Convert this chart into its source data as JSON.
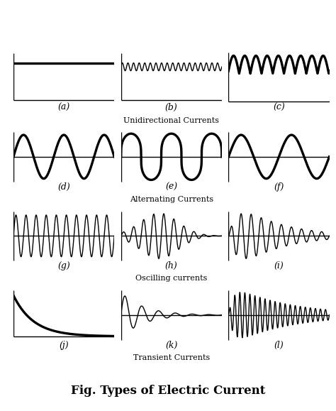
{
  "title": "Fig. Types of Electric Current",
  "title_fontsize": 12,
  "bg_color": "#ffffff",
  "text_color": "#000000",
  "lw_signal": 1.6,
  "lw_axis": 1.0,
  "lw_thick": 2.4,
  "panels": [
    {
      "label": "(a)",
      "type": "dc_flat"
    },
    {
      "label": "(b)",
      "type": "dc_ripple_small"
    },
    {
      "label": "(c)",
      "type": "dc_ripple_large"
    },
    {
      "label": "(d)",
      "type": "ac_sine"
    },
    {
      "label": "(e)",
      "type": "ac_peaky"
    },
    {
      "label": "(f)",
      "type": "ac_sine2"
    },
    {
      "label": "(g)",
      "type": "osc_uniform"
    },
    {
      "label": "(h)",
      "type": "osc_burst"
    },
    {
      "label": "(i)",
      "type": "osc_decay"
    },
    {
      "label": "(j)",
      "type": "trans_exp_decay"
    },
    {
      "label": "(k)",
      "type": "trans_damped_osc"
    },
    {
      "label": "(l)",
      "type": "trans_grow_osc"
    }
  ],
  "group_labels": [
    {
      "text": "Unidirectional Currents",
      "row": 0
    },
    {
      "text": "Alternating Currents",
      "row": 1
    },
    {
      "text": "Oscilling currents",
      "row": 2
    },
    {
      "text": "Transient Currents",
      "row": 3
    }
  ]
}
